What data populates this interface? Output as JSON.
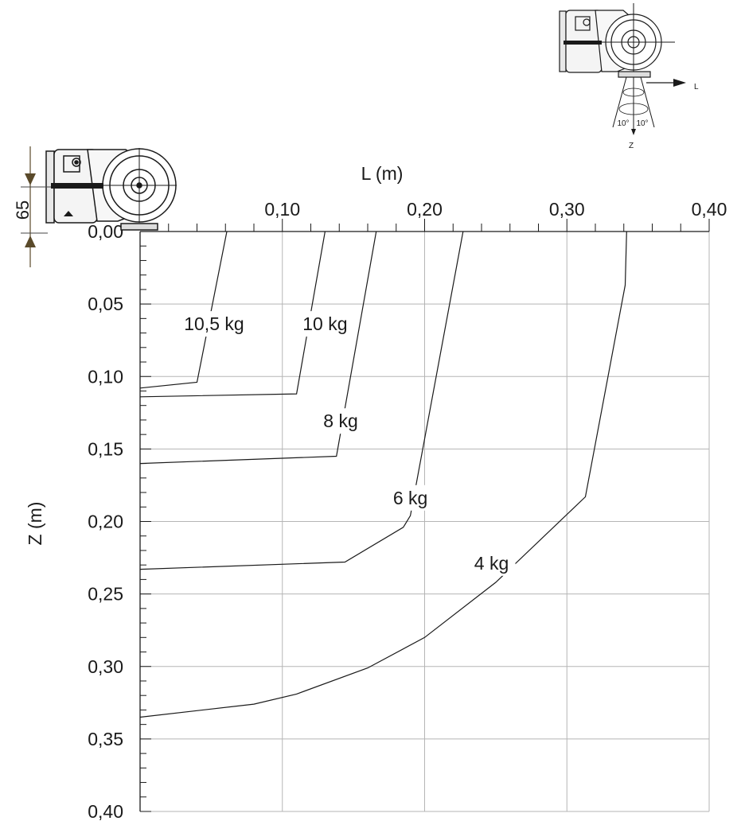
{
  "chart_data": {
    "type": "line",
    "xlabel": "L (m)",
    "ylabel": "Z (m)",
    "xlim": [
      0,
      0.4
    ],
    "ylim": [
      0,
      0.4
    ],
    "y_inverted": true,
    "x_axis_position": "top",
    "grid": true,
    "x_ticks": [
      "0,10",
      "0,20",
      "0,30",
      "0,40"
    ],
    "x_tick_values": [
      0.1,
      0.2,
      0.3,
      0.4
    ],
    "y_ticks": [
      "0,00",
      "0,05",
      "0,10",
      "0,15",
      "0,20",
      "0,25",
      "0,30",
      "0,35",
      "0,40"
    ],
    "y_tick_values": [
      0,
      0.05,
      0.1,
      0.15,
      0.2,
      0.25,
      0.3,
      0.35,
      0.4
    ],
    "series": [
      {
        "name": "10,5 kg",
        "points": [
          [
            0.0,
            0.108
          ],
          [
            0.04,
            0.104
          ],
          [
            0.061,
            0.0
          ]
        ]
      },
      {
        "name": "10 kg",
        "points": [
          [
            0.0,
            0.114
          ],
          [
            0.11,
            0.112
          ],
          [
            0.13,
            0.0
          ]
        ]
      },
      {
        "name": "8 kg",
        "points": [
          [
            0.0,
            0.16
          ],
          [
            0.138,
            0.155
          ],
          [
            0.166,
            0.0
          ]
        ]
      },
      {
        "name": "6 kg",
        "points": [
          [
            0.0,
            0.233
          ],
          [
            0.144,
            0.228
          ],
          [
            0.185,
            0.204
          ],
          [
            0.19,
            0.196
          ],
          [
            0.227,
            0.0
          ]
        ]
      },
      {
        "name": "4 kg",
        "points": [
          [
            0.0,
            0.335
          ],
          [
            0.08,
            0.326
          ],
          [
            0.11,
            0.319
          ],
          [
            0.16,
            0.301
          ],
          [
            0.2,
            0.28
          ],
          [
            0.25,
            0.242
          ],
          [
            0.313,
            0.183
          ],
          [
            0.341,
            0.037
          ],
          [
            0.342,
            0.0
          ]
        ]
      }
    ]
  },
  "annotations": {
    "dimension_value": "65",
    "inset_axis_L": "L",
    "inset_axis_Z": "Z",
    "inset_angle_left": "10°",
    "inset_angle_right": "10°"
  }
}
